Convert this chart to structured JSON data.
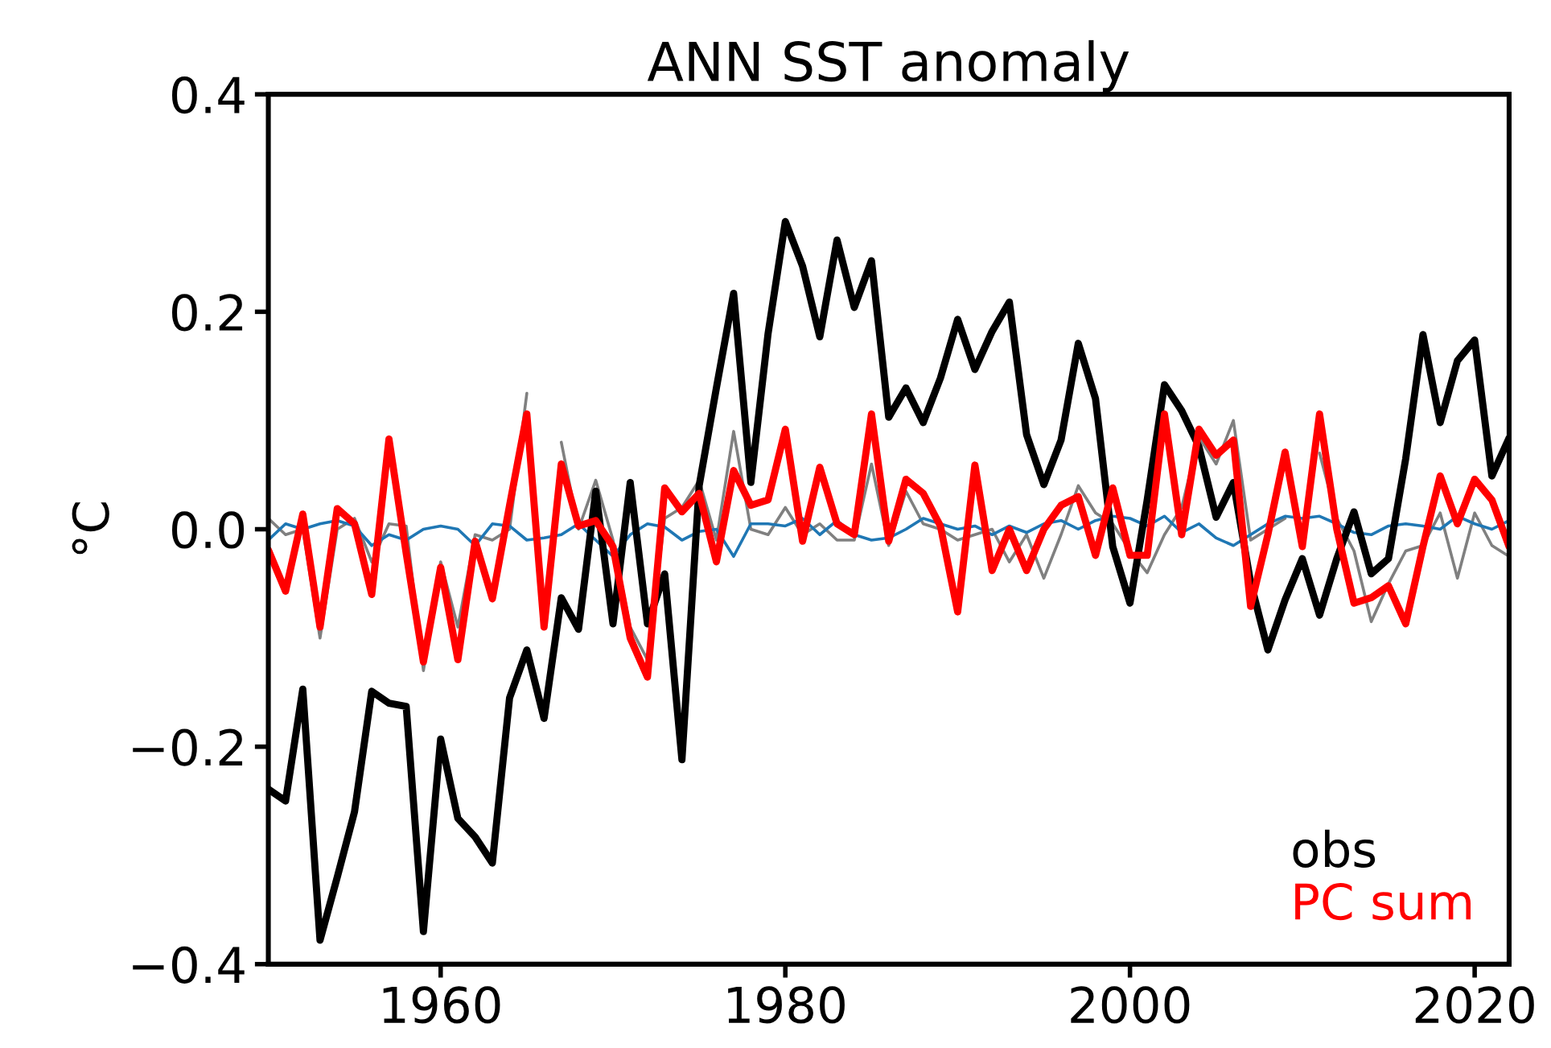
{
  "chart_data": {
    "type": "line",
    "title": "ANN SST anomaly",
    "ylabel": "°C",
    "x": [
      1950,
      1951,
      1952,
      1953,
      1954,
      1955,
      1956,
      1957,
      1958,
      1959,
      1960,
      1961,
      1962,
      1963,
      1964,
      1965,
      1966,
      1967,
      1968,
      1969,
      1970,
      1971,
      1972,
      1973,
      1974,
      1975,
      1976,
      1977,
      1978,
      1979,
      1980,
      1981,
      1982,
      1983,
      1984,
      1985,
      1986,
      1987,
      1988,
      1989,
      1990,
      1991,
      1992,
      1993,
      1994,
      1995,
      1996,
      1997,
      1998,
      1999,
      2000,
      2001,
      2002,
      2003,
      2004,
      2005,
      2006,
      2007,
      2008,
      2009,
      2010,
      2011,
      2012,
      2013,
      2014,
      2015,
      2016,
      2017,
      2018,
      2019,
      2020,
      2021,
      2022
    ],
    "series": [
      {
        "color": "#808080",
        "values": [
          0.01,
          -0.005,
          0.0,
          -0.1,
          0.0,
          0.01,
          -0.03,
          0.005,
          0.003,
          -0.13,
          -0.03,
          -0.09,
          -0.005,
          -0.01,
          0.0,
          0.125,
          null,
          0.08,
          0.0,
          0.045,
          -0.01,
          -0.09,
          -0.12,
          0.01,
          0.02,
          0.045,
          -0.01,
          0.09,
          0.0,
          -0.005,
          0.02,
          -0.005,
          0.005,
          -0.01,
          -0.01,
          0.06,
          -0.015,
          0.035,
          0.005,
          0.0,
          -0.01,
          -0.005,
          0.0,
          -0.03,
          -0.005,
          -0.045,
          -0.005,
          0.04,
          0.015,
          0.005,
          -0.02,
          -0.04,
          -0.005,
          0.02,
          0.085,
          0.06,
          0.1,
          -0.01,
          0.0,
          0.01,
          null,
          0.07,
          0.01,
          -0.02,
          -0.085,
          -0.05,
          -0.02,
          -0.015,
          0.015,
          -0.045,
          0.015,
          -0.015,
          -0.025
        ]
      },
      {
        "color": "#1f77b4",
        "values": [
          -0.01,
          0.005,
          0.0,
          0.005,
          0.008,
          0.003,
          -0.015,
          -0.005,
          -0.01,
          0.0,
          0.003,
          0.0,
          -0.015,
          0.005,
          0.003,
          -0.01,
          -0.008,
          -0.005,
          0.005,
          -0.01,
          -0.025,
          -0.005,
          0.005,
          0.002,
          -0.01,
          -0.002,
          0.0,
          -0.025,
          0.005,
          0.005,
          0.003,
          0.01,
          -0.005,
          0.008,
          -0.005,
          -0.01,
          -0.008,
          0.0,
          0.01,
          0.005,
          0.0,
          0.003,
          -0.005,
          0.003,
          -0.003,
          0.005,
          0.008,
          0.0,
          0.008,
          0.012,
          0.01,
          0.003,
          0.012,
          -0.003,
          0.005,
          -0.008,
          -0.015,
          -0.005,
          0.005,
          0.012,
          0.01,
          0.012,
          0.005,
          -0.003,
          -0.005,
          0.003,
          0.005,
          0.003,
          0.0,
          0.012,
          0.005,
          0.0,
          0.008
        ]
      },
      {
        "name": "obs",
        "color": "#000000",
        "values": [
          -0.239,
          -0.25,
          -0.147,
          -0.378,
          -0.32,
          -0.26,
          -0.149,
          -0.16,
          -0.163,
          -0.37,
          -0.193,
          -0.266,
          -0.283,
          -0.307,
          -0.155,
          -0.111,
          -0.174,
          -0.063,
          -0.092,
          0.035,
          -0.087,
          0.043,
          -0.087,
          -0.041,
          -0.212,
          0.04,
          0.13,
          0.217,
          0.043,
          0.18,
          0.283,
          0.242,
          0.177,
          0.266,
          0.204,
          0.247,
          0.103,
          0.13,
          0.098,
          0.139,
          0.193,
          0.147,
          0.182,
          0.209,
          0.087,
          0.041,
          0.082,
          0.171,
          0.12,
          -0.016,
          -0.068,
          0.027,
          0.133,
          0.109,
          0.076,
          0.011,
          0.043,
          -0.049,
          -0.111,
          -0.065,
          -0.027,
          -0.079,
          -0.027,
          0.016,
          -0.041,
          -0.027,
          0.065,
          0.179,
          0.098,
          0.155,
          0.174,
          0.049,
          0.084
        ]
      },
      {
        "name": "PC sum",
        "color": "#ff0000",
        "values": [
          -0.019,
          -0.057,
          0.014,
          -0.09,
          0.019,
          0.005,
          -0.06,
          0.083,
          -0.022,
          -0.122,
          -0.035,
          -0.12,
          -0.011,
          -0.064,
          0.022,
          0.106,
          -0.09,
          0.06,
          0.003,
          0.008,
          -0.016,
          -0.1,
          -0.136,
          0.038,
          0.016,
          0.033,
          -0.03,
          0.054,
          0.022,
          0.027,
          0.092,
          -0.011,
          0.057,
          0.005,
          -0.005,
          0.106,
          -0.011,
          0.046,
          0.033,
          0.003,
          -0.076,
          0.059,
          -0.038,
          0.0,
          -0.038,
          0.0,
          0.022,
          0.03,
          -0.024,
          0.038,
          -0.024,
          -0.024,
          0.106,
          -0.005,
          0.092,
          0.068,
          0.082,
          -0.071,
          -0.005,
          0.071,
          -0.016,
          0.106,
          0.0,
          -0.068,
          -0.063,
          -0.052,
          -0.087,
          -0.016,
          0.049,
          0.005,
          0.046,
          0.027,
          -0.016
        ]
      }
    ],
    "xlim": [
      1950,
      2022
    ],
    "xticks": [
      1960,
      1980,
      2000,
      2020
    ],
    "ylim": [
      -0.4,
      0.4
    ],
    "yticks": [
      {
        "value": -0.4,
        "label": "−0.4"
      },
      {
        "value": -0.2,
        "label": "−0.2"
      },
      {
        "value": 0.0,
        "label": "0.0"
      },
      {
        "value": 0.2,
        "label": "0.2"
      },
      {
        "value": 0.4,
        "label": "0.4"
      }
    ],
    "legend": "bottom right",
    "grid": false
  }
}
